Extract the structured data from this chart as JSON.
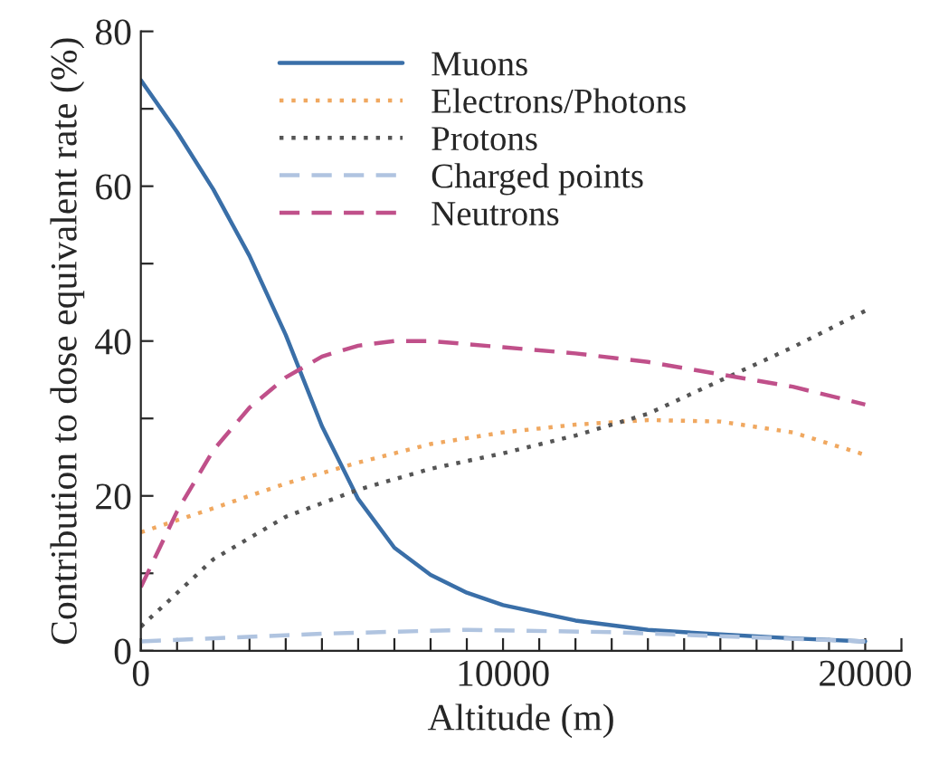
{
  "chart_data": {
    "type": "line",
    "xlabel": "Altitude (m)",
    "ylabel": "Contribution to dose equivalent rate (%)",
    "xlim": [
      0,
      21000
    ],
    "ylim": [
      0,
      80
    ],
    "xticks": [
      0,
      {
        "value": 1000,
        "label": null
      },
      {
        "value": 2000,
        "label": null
      },
      {
        "value": 3000,
        "label": null
      },
      {
        "value": 4000,
        "label": null
      },
      {
        "value": 5000,
        "label": null
      },
      {
        "value": 6000,
        "label": null
      },
      {
        "value": 7000,
        "label": null
      },
      {
        "value": 8000,
        "label": null
      },
      {
        "value": 9000,
        "label": null
      },
      10000,
      {
        "value": 11000,
        "label": null
      },
      {
        "value": 12000,
        "label": null
      },
      {
        "value": 13000,
        "label": null
      },
      {
        "value": 14000,
        "label": null
      },
      {
        "value": 15000,
        "label": null
      },
      {
        "value": 16000,
        "label": null
      },
      {
        "value": 17000,
        "label": null
      },
      {
        "value": 18000,
        "label": null
      },
      {
        "value": 19000,
        "label": null
      },
      20000,
      {
        "value": 21000,
        "label": null
      }
    ],
    "yticks": [
      0,
      {
        "value": 10,
        "label": null
      },
      20,
      {
        "value": 30,
        "label": null
      },
      40,
      {
        "value": 50,
        "label": null
      },
      60,
      {
        "value": 70,
        "label": null
      },
      80
    ],
    "grid": false,
    "legend": "top",
    "marker": "none",
    "series": [
      {
        "name": "Muons",
        "color": "#3a6fa8",
        "line_style": "solid",
        "x": [
          0,
          1000,
          2000,
          3000,
          4000,
          5000,
          6000,
          7000,
          8000,
          9000,
          10000,
          12000,
          14000,
          16000,
          18000,
          20000
        ],
        "values": [
          73.7,
          67,
          59.6,
          51,
          40.8,
          29,
          19.6,
          13.3,
          9.8,
          7.5,
          5.9,
          3.9,
          2.7,
          2.1,
          1.6,
          1.2
        ]
      },
      {
        "name": "Electrons/Photons",
        "color": "#f0a860",
        "line_style": "dotted",
        "x": [
          0,
          2000,
          4000,
          6000,
          8000,
          10000,
          12000,
          14000,
          16000,
          18000,
          20000
        ],
        "values": [
          15.3,
          18.4,
          21.6,
          24.3,
          26.7,
          28.2,
          29.2,
          29.8,
          29.6,
          28.2,
          25.3
        ]
      },
      {
        "name": "Protons",
        "color": "#555555",
        "line_style": "dotted",
        "x": [
          0,
          2000,
          4000,
          6000,
          8000,
          10000,
          12000,
          14000,
          16000,
          18000,
          20000
        ],
        "values": [
          3.1,
          11.8,
          17.3,
          20.8,
          23.5,
          25.5,
          27.8,
          30.6,
          34.9,
          39.2,
          43.9
        ]
      },
      {
        "name": "Charged points",
        "color": "#b0c4e0",
        "line_style": "dashed",
        "x": [
          0,
          5000,
          9000,
          13000,
          17000,
          20000
        ],
        "values": [
          1.2,
          2.2,
          2.7,
          2.4,
          1.7,
          1.2
        ]
      },
      {
        "name": "Neutrons",
        "color": "#c0508a",
        "line_style": "dashed",
        "x": [
          0,
          1000,
          2000,
          3000,
          4000,
          5000,
          6000,
          7000,
          8000,
          10000,
          12000,
          14000,
          16000,
          18000,
          20000
        ],
        "values": [
          8.2,
          18,
          25.9,
          31.4,
          35.3,
          38,
          39.4,
          40,
          40,
          39.2,
          38.4,
          37.3,
          35.7,
          34.1,
          31.8
        ]
      }
    ]
  }
}
